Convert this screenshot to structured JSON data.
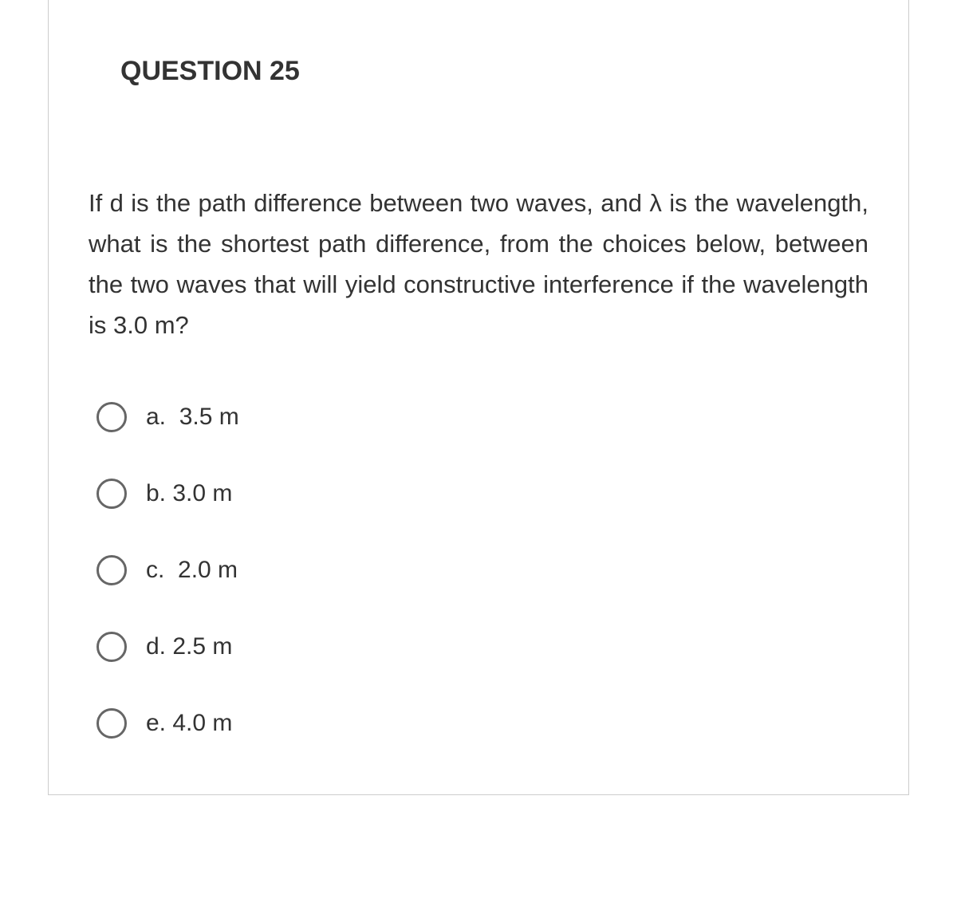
{
  "question": {
    "title": "QUESTION 25",
    "text": "If d is the path difference between two waves, and λ is the wavelength, what is the shortest path difference, from the choices below, between the two waves that will yield constructive interference if the wavelength is 3.0 m?",
    "options": [
      {
        "letter": "a.",
        "value": "3.5 m"
      },
      {
        "letter": "b.",
        "value": "3.0 m"
      },
      {
        "letter": "c.",
        "value": "2.0 m"
      },
      {
        "letter": "d.",
        "value": "2.5 m"
      },
      {
        "letter": "e.",
        "value": "4.0 m"
      }
    ]
  },
  "styling": {
    "card_border_color": "#cccccc",
    "text_color": "#333333",
    "radio_border_color": "#666666",
    "background_color": "#ffffff",
    "title_fontsize": 34,
    "body_fontsize": 31,
    "option_fontsize": 30
  }
}
